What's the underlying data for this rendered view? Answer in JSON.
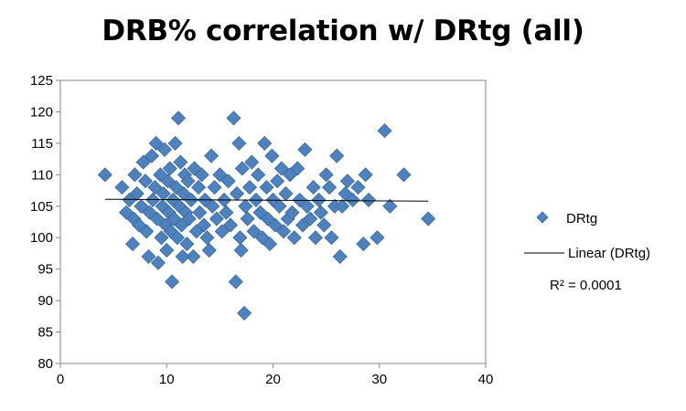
{
  "chart_data": {
    "type": "scatter",
    "title": "DRB% correlation w/ DRtg (all)",
    "xlabel": "",
    "ylabel": "",
    "xlim": [
      0,
      40
    ],
    "ylim": [
      80,
      125
    ],
    "x_ticks": [
      "0",
      "10",
      "20",
      "30",
      "40"
    ],
    "y_ticks": [
      "80",
      "85",
      "90",
      "95",
      "100",
      "105",
      "110",
      "115",
      "120",
      "125"
    ],
    "grid": false,
    "legend_position": "right",
    "series": [
      {
        "name": "DRtg",
        "color": "#4F81BD",
        "marker": "diamond",
        "points": [
          [
            4.2,
            110
          ],
          [
            5.8,
            108
          ],
          [
            6.2,
            104
          ],
          [
            6.5,
            106
          ],
          [
            6.8,
            99
          ],
          [
            6.9,
            103
          ],
          [
            7.0,
            110
          ],
          [
            7.2,
            107
          ],
          [
            7.4,
            102
          ],
          [
            7.6,
            105
          ],
          [
            7.8,
            112
          ],
          [
            8.0,
            109
          ],
          [
            8.1,
            101
          ],
          [
            8.3,
            97
          ],
          [
            8.4,
            104
          ],
          [
            8.6,
            113
          ],
          [
            8.7,
            106
          ],
          [
            8.9,
            108
          ],
          [
            9.0,
            115
          ],
          [
            9.1,
            103
          ],
          [
            9.2,
            96
          ],
          [
            9.4,
            110
          ],
          [
            9.5,
            100
          ],
          [
            9.6,
            105
          ],
          [
            9.7,
            107
          ],
          [
            9.8,
            114
          ],
          [
            9.9,
            102
          ],
          [
            10.0,
            98
          ],
          [
            10.1,
            109
          ],
          [
            10.2,
            104
          ],
          [
            10.3,
            111
          ],
          [
            10.4,
            101
          ],
          [
            10.5,
            93
          ],
          [
            10.6,
            106
          ],
          [
            10.7,
            103
          ],
          [
            10.8,
            115
          ],
          [
            10.9,
            108
          ],
          [
            11.0,
            100
          ],
          [
            11.1,
            119
          ],
          [
            11.2,
            105
          ],
          [
            11.3,
            112
          ],
          [
            11.4,
            102
          ],
          [
            11.5,
            97
          ],
          [
            11.6,
            107
          ],
          [
            11.7,
            110
          ],
          [
            11.8,
            104
          ],
          [
            11.9,
            99
          ],
          [
            12.0,
            109
          ],
          [
            12.1,
            103
          ],
          [
            12.3,
            106
          ],
          [
            12.5,
            97
          ],
          [
            12.6,
            111
          ],
          [
            12.8,
            101
          ],
          [
            13.0,
            108
          ],
          [
            13.1,
            104
          ],
          [
            13.3,
            110
          ],
          [
            13.5,
            102
          ],
          [
            13.6,
            106
          ],
          [
            13.8,
            100
          ],
          [
            14.0,
            98
          ],
          [
            14.2,
            113
          ],
          [
            14.3,
            105
          ],
          [
            14.5,
            108
          ],
          [
            14.7,
            103
          ],
          [
            15.0,
            110
          ],
          [
            15.2,
            101
          ],
          [
            15.4,
            106
          ],
          [
            15.6,
            104
          ],
          [
            15.8,
            109
          ],
          [
            16.0,
            102
          ],
          [
            16.3,
            119
          ],
          [
            16.5,
            93
          ],
          [
            16.6,
            107
          ],
          [
            16.8,
            115
          ],
          [
            16.9,
            100
          ],
          [
            17.0,
            98
          ],
          [
            17.1,
            111
          ],
          [
            17.3,
            88
          ],
          [
            17.4,
            105
          ],
          [
            17.6,
            103
          ],
          [
            17.8,
            108
          ],
          [
            18.0,
            112
          ],
          [
            18.2,
            101
          ],
          [
            18.4,
            106
          ],
          [
            18.6,
            110
          ],
          [
            18.8,
            104
          ],
          [
            19.0,
            100
          ],
          [
            19.2,
            115
          ],
          [
            19.4,
            108
          ],
          [
            19.5,
            103
          ],
          [
            19.7,
            99
          ],
          [
            19.9,
            113
          ],
          [
            20.0,
            106
          ],
          [
            20.2,
            102
          ],
          [
            20.4,
            109
          ],
          [
            20.6,
            105
          ],
          [
            20.8,
            111
          ],
          [
            21.0,
            101
          ],
          [
            21.2,
            107
          ],
          [
            21.4,
            103
          ],
          [
            21.6,
            110
          ],
          [
            21.8,
            104
          ],
          [
            22.0,
            100
          ],
          [
            22.3,
            111
          ],
          [
            22.5,
            106
          ],
          [
            22.8,
            102
          ],
          [
            23.0,
            114
          ],
          [
            23.2,
            105
          ],
          [
            23.5,
            103
          ],
          [
            23.8,
            108
          ],
          [
            24.0,
            100
          ],
          [
            24.3,
            106
          ],
          [
            24.5,
            104
          ],
          [
            24.8,
            102
          ],
          [
            25.0,
            110
          ],
          [
            25.3,
            108
          ],
          [
            25.5,
            100
          ],
          [
            25.8,
            105
          ],
          [
            26.0,
            113
          ],
          [
            26.3,
            97
          ],
          [
            26.5,
            105
          ],
          [
            26.8,
            107
          ],
          [
            27.0,
            109
          ],
          [
            27.5,
            106
          ],
          [
            28.0,
            108
          ],
          [
            28.5,
            99
          ],
          [
            28.7,
            110
          ],
          [
            29.0,
            106
          ],
          [
            29.8,
            100
          ],
          [
            30.5,
            117
          ],
          [
            31.0,
            105
          ],
          [
            32.3,
            110
          ],
          [
            34.6,
            103
          ]
        ]
      }
    ],
    "trendline": {
      "name": "Linear (DRtg)",
      "color": "#000000",
      "x": [
        4.2,
        34.6
      ],
      "y": [
        106.1,
        105.8
      ],
      "r_squared_label": "R² = 0.0001"
    }
  }
}
